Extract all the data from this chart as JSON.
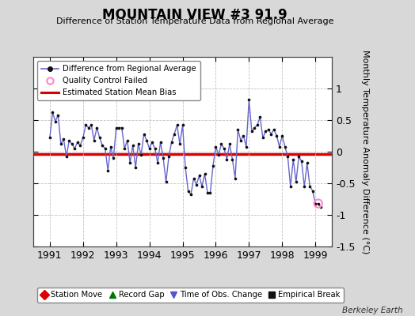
{
  "title": "MOUNTAIN VIEW #3 91.9",
  "subtitle": "Difference of Station Temperature Data from Regional Average",
  "ylabel": "Monthly Temperature Anomaly Difference (°C)",
  "credit": "Berkeley Earth",
  "ylim": [
    -1.5,
    1.5
  ],
  "xlim": [
    1990.5,
    1999.5
  ],
  "xticks": [
    1991,
    1992,
    1993,
    1994,
    1995,
    1996,
    1997,
    1998,
    1999
  ],
  "yticks": [
    -1.5,
    -1,
    -0.5,
    0,
    0.5,
    1
  ],
  "ytick_labels": [
    "-1.5",
    "-1",
    "-0.5",
    "0",
    "0.5",
    "1"
  ],
  "bias_value": -0.04,
  "line_color": "#6666cc",
  "bias_color": "#dd0000",
  "dot_color": "#111111",
  "bg_color": "#d8d8d8",
  "plot_bg_color": "#ffffff",
  "qc_failed_indices": [
    97
  ],
  "time_values": [
    1991.0,
    1991.0833,
    1991.1667,
    1991.25,
    1991.3333,
    1991.4167,
    1991.5,
    1991.5833,
    1991.6667,
    1991.75,
    1991.8333,
    1991.9167,
    1992.0,
    1992.0833,
    1992.1667,
    1992.25,
    1992.3333,
    1992.4167,
    1992.5,
    1992.5833,
    1992.6667,
    1992.75,
    1992.8333,
    1992.9167,
    1993.0,
    1993.0833,
    1993.1667,
    1993.25,
    1993.3333,
    1993.4167,
    1993.5,
    1993.5833,
    1993.6667,
    1993.75,
    1993.8333,
    1993.9167,
    1994.0,
    1994.0833,
    1994.1667,
    1994.25,
    1994.3333,
    1994.4167,
    1994.5,
    1994.5833,
    1994.6667,
    1994.75,
    1994.8333,
    1994.9167,
    1995.0,
    1995.0833,
    1995.1667,
    1995.25,
    1995.3333,
    1995.4167,
    1995.5,
    1995.5833,
    1995.6667,
    1995.75,
    1995.8333,
    1995.9167,
    1996.0,
    1996.0833,
    1996.1667,
    1996.25,
    1996.3333,
    1996.4167,
    1996.5,
    1996.5833,
    1996.6667,
    1996.75,
    1996.8333,
    1996.9167,
    1997.0,
    1997.0833,
    1997.1667,
    1997.25,
    1997.3333,
    1997.4167,
    1997.5,
    1997.5833,
    1997.6667,
    1997.75,
    1997.8333,
    1997.9167,
    1998.0,
    1998.0833,
    1998.1667,
    1998.25,
    1998.3333,
    1998.4167,
    1998.5,
    1998.5833,
    1998.6667,
    1998.75,
    1998.8333,
    1998.9167,
    1999.0,
    1999.0833,
    1999.1667
  ],
  "data_values": [
    0.22,
    0.62,
    0.48,
    0.58,
    0.12,
    0.2,
    -0.08,
    0.18,
    0.12,
    0.05,
    0.15,
    0.1,
    0.22,
    0.42,
    0.38,
    0.42,
    0.18,
    0.38,
    0.22,
    0.1,
    0.05,
    -0.3,
    0.08,
    -0.1,
    0.38,
    0.38,
    0.38,
    0.05,
    0.18,
    -0.18,
    0.1,
    -0.25,
    0.12,
    -0.05,
    0.28,
    0.18,
    0.05,
    0.15,
    0.05,
    -0.18,
    0.15,
    -0.1,
    -0.48,
    -0.08,
    0.15,
    0.28,
    0.42,
    0.12,
    0.42,
    -0.25,
    -0.62,
    -0.68,
    -0.42,
    -0.52,
    -0.38,
    -0.55,
    -0.35,
    -0.65,
    -0.65,
    -0.22,
    0.08,
    -0.05,
    0.12,
    0.05,
    -0.12,
    0.12,
    -0.12,
    -0.42,
    0.35,
    0.18,
    0.25,
    0.08,
    0.82,
    0.32,
    0.38,
    0.42,
    0.55,
    0.22,
    0.32,
    0.35,
    0.28,
    0.35,
    0.25,
    0.08,
    0.25,
    0.08,
    -0.08,
    -0.55,
    -0.12,
    -0.48,
    -0.08,
    -0.15,
    -0.55,
    -0.18,
    -0.55,
    -0.62,
    -0.82,
    -0.82,
    -0.88
  ],
  "bottom_legend": [
    {
      "label": "Station Move",
      "color": "#dd0000",
      "marker": "D"
    },
    {
      "label": "Record Gap",
      "color": "#007700",
      "marker": "^"
    },
    {
      "label": "Time of Obs. Change",
      "color": "#5555cc",
      "marker": "v"
    },
    {
      "label": "Empirical Break",
      "color": "#111111",
      "marker": "s"
    }
  ]
}
